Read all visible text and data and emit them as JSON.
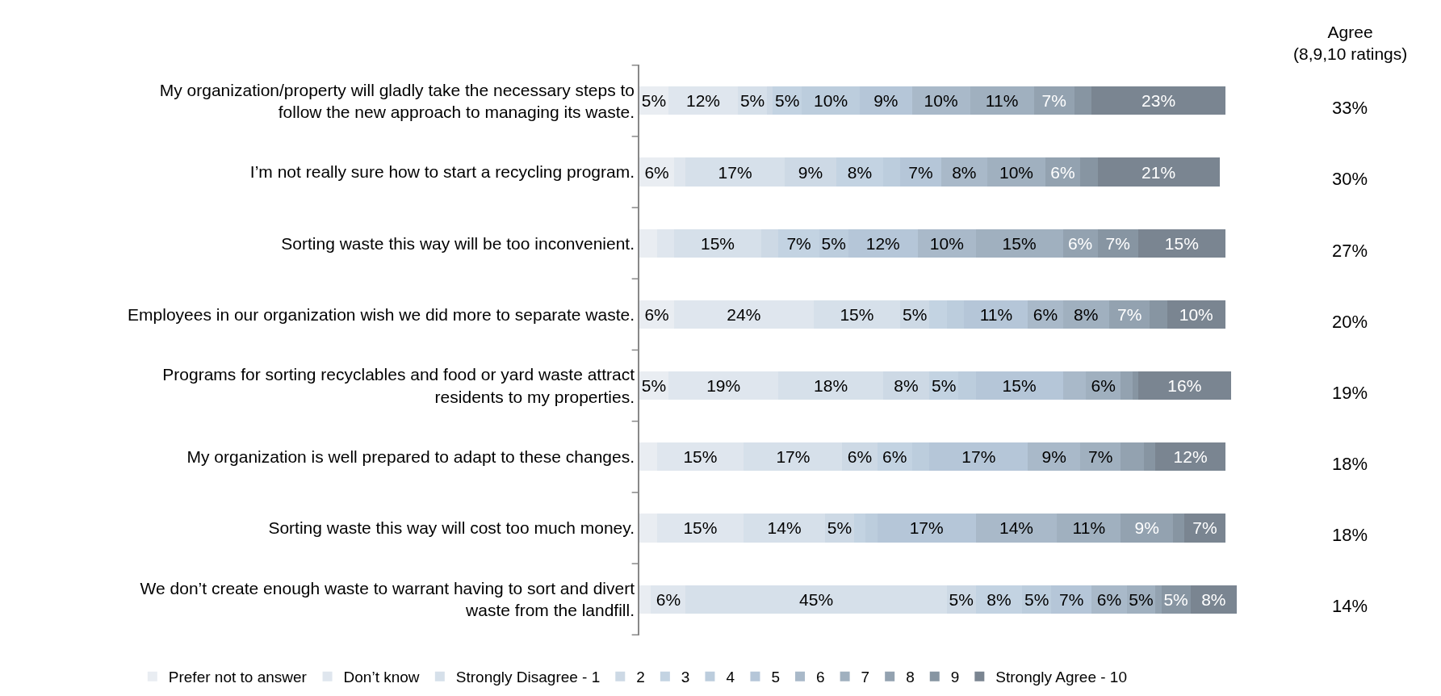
{
  "chart_data": {
    "type": "bar",
    "orientation": "horizontal",
    "stacked": true,
    "legend": "bottom",
    "categories": [
      "My organization/property will gladly take the necessary steps to follow the new approach to managing its waste.",
      "I’m not really sure how to start a recycling program.",
      "Sorting waste this way will be too inconvenient.",
      "Employees in our organization wish we did more to separate waste.",
      "Programs for sorting recyclables and food or yard waste attract residents to my properties.",
      "My organization is well prepared to adapt to these changes.",
      "Sorting waste this way will cost too much money.",
      "We don’t create enough waste to warrant having to sort and divert waste from the landfill."
    ],
    "series": [
      {
        "name": "Prefer not to answer",
        "color": "#e9edf2",
        "values": [
          5,
          6,
          3,
          6,
          5,
          3,
          3,
          2
        ],
        "value_labels": [
          "5%",
          "6%",
          null,
          "6%",
          "5%",
          null,
          null,
          null
        ]
      },
      {
        "name": "Don’t know",
        "color": "#dfe6ee",
        "values": [
          12,
          2,
          3,
          24,
          19,
          15,
          15,
          6
        ],
        "value_labels": [
          "12%",
          null,
          null,
          "24%",
          "19%",
          "15%",
          "15%",
          "6%"
        ]
      },
      {
        "name": "Strongly Disagree - 1",
        "color": "#d6e0ea",
        "values": [
          5,
          17,
          15,
          15,
          18,
          17,
          14,
          45
        ],
        "value_labels": [
          "5%",
          "17%",
          "15%",
          "15%",
          "18%",
          "17%",
          "14%",
          "45%"
        ]
      },
      {
        "name": "2",
        "color": "#cdd9e5",
        "values": [
          1,
          9,
          3,
          5,
          8,
          6,
          5,
          5
        ],
        "value_labels": [
          null,
          "9%",
          null,
          "5%",
          "8%",
          "6%",
          "5%",
          "5%"
        ]
      },
      {
        "name": "3",
        "color": "#c3d3e2",
        "values": [
          5,
          8,
          7,
          3,
          5,
          6,
          2,
          8
        ],
        "value_labels": [
          "5%",
          "8%",
          "7%",
          null,
          "5%",
          "6%",
          null,
          "8%"
        ]
      },
      {
        "name": "4",
        "color": "#bccddd",
        "values": [
          10,
          3,
          5,
          3,
          3,
          3,
          2,
          5
        ],
        "value_labels": [
          "10%",
          null,
          "5%",
          null,
          null,
          null,
          null,
          "5%"
        ]
      },
      {
        "name": "5",
        "color": "#b5c6d8",
        "values": [
          9,
          7,
          12,
          11,
          15,
          17,
          17,
          7
        ],
        "value_labels": [
          "9%",
          "7%",
          "12%",
          "11%",
          "15%",
          "17%",
          "17%",
          "7%"
        ]
      },
      {
        "name": "6",
        "color": "#a9b9c9",
        "values": [
          10,
          8,
          10,
          6,
          4,
          9,
          14,
          6
        ],
        "value_labels": [
          "10%",
          "8%",
          "10%",
          "6%",
          null,
          "9%",
          "14%",
          "6%"
        ]
      },
      {
        "name": "7",
        "color": "#a0b0bf",
        "values": [
          11,
          10,
          15,
          8,
          6,
          7,
          11,
          5
        ],
        "value_labels": [
          "11%",
          "10%",
          "15%",
          "8%",
          "6%",
          "7%",
          "11%",
          "5%"
        ]
      },
      {
        "name": "8",
        "color": "#93a2b0",
        "values": [
          7,
          6,
          6,
          7,
          2,
          4,
          9,
          1
        ],
        "value_labels": [
          "7%",
          "6%",
          "6%",
          "7%",
          null,
          null,
          "9%",
          null
        ]
      },
      {
        "name": "9",
        "color": "#8795a2",
        "values": [
          3,
          3,
          7,
          3,
          1,
          2,
          2,
          5
        ],
        "value_labels": [
          null,
          null,
          "7%",
          null,
          null,
          null,
          null,
          "5%"
        ]
      },
      {
        "name": "Strongly Agree - 10",
        "color": "#7a8591",
        "values": [
          23,
          21,
          15,
          10,
          16,
          12,
          7,
          8
        ],
        "value_labels": [
          "23%",
          "21%",
          "15%",
          "10%",
          "16%",
          "12%",
          "7%",
          "8%"
        ]
      }
    ],
    "annotations": [
      "Agree\n(8,9,10 ratings)",
      "33%",
      "30%",
      "27%",
      "20%",
      "19%",
      "18%",
      "18%",
      "14%"
    ]
  }
}
